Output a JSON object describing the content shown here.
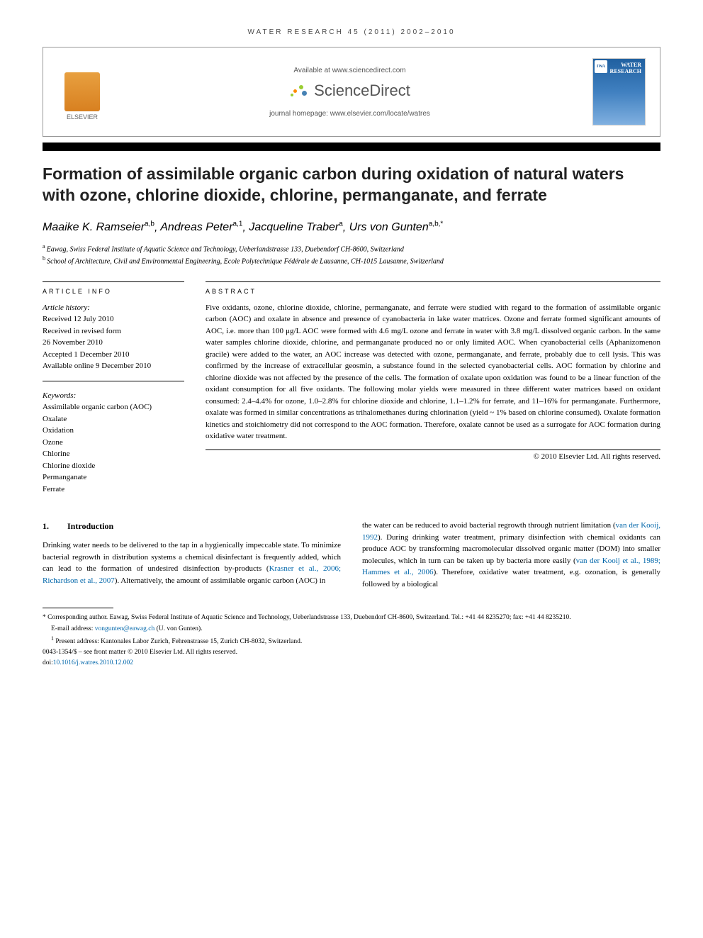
{
  "header": {
    "citation": "WATER RESEARCH 45 (2011) 2002–2010",
    "available_at": "Available at www.sciencedirect.com",
    "publisher_logo": "ScienceDirect",
    "elsevier_label": "ELSEVIER",
    "journal_homepage_label": "journal homepage: www.elsevier.com/locate/watres",
    "cover_title_line1": "WATER",
    "cover_title_line2": "RESEARCH",
    "cover_badge": "IWA"
  },
  "article": {
    "title": "Formation of assimilable organic carbon during oxidation of natural waters with ozone, chlorine dioxide, chlorine, permanganate, and ferrate",
    "authors_html_parts": [
      {
        "name": "Maaike K. Ramseier",
        "sup": "a,b"
      },
      {
        "name": "Andreas Peter",
        "sup": "a,1"
      },
      {
        "name": "Jacqueline Traber",
        "sup": "a"
      },
      {
        "name": "Urs von Gunten",
        "sup": "a,b,*"
      }
    ],
    "affiliations": [
      {
        "sup": "a",
        "text": "Eawag, Swiss Federal Institute of Aquatic Science and Technology, Ueberlandstrasse 133, Duebendorf CH-8600, Switzerland"
      },
      {
        "sup": "b",
        "text": "School of Architecture, Civil and Environmental Engineering, Ecole Polytechnique Fédérale de Lausanne, CH-1015 Lausanne, Switzerland"
      }
    ]
  },
  "info": {
    "heading": "ARTICLE INFO",
    "history_label": "Article history:",
    "received": "Received 12 July 2010",
    "revised_label": "Received in revised form",
    "revised_date": "26 November 2010",
    "accepted": "Accepted 1 December 2010",
    "online": "Available online 9 December 2010",
    "keywords_label": "Keywords:",
    "keywords": [
      "Assimilable organic carbon (AOC)",
      "Oxalate",
      "Oxidation",
      "Ozone",
      "Chlorine",
      "Chlorine dioxide",
      "Permanganate",
      "Ferrate"
    ]
  },
  "abstract": {
    "heading": "ABSTRACT",
    "text": "Five oxidants, ozone, chlorine dioxide, chlorine, permanganate, and ferrate were studied with regard to the formation of assimilable organic carbon (AOC) and oxalate in absence and presence of cyanobacteria in lake water matrices. Ozone and ferrate formed significant amounts of AOC, i.e. more than 100 μg/L AOC were formed with 4.6 mg/L ozone and ferrate in water with 3.8 mg/L dissolved organic carbon. In the same water samples chlorine dioxide, chlorine, and permanganate produced no or only limited AOC. When cyanobacterial cells (Aphanizomenon gracile) were added to the water, an AOC increase was detected with ozone, permanganate, and ferrate, probably due to cell lysis. This was confirmed by the increase of extracellular geosmin, a substance found in the selected cyanobacterial cells. AOC formation by chlorine and chlorine dioxide was not affected by the presence of the cells. The formation of oxalate upon oxidation was found to be a linear function of the oxidant consumption for all five oxidants. The following molar yields were measured in three different water matrices based on oxidant consumed: 2.4–4.4% for ozone, 1.0–2.8% for chlorine dioxide and chlorine, 1.1–1.2% for ferrate, and 11–16% for permanganate. Furthermore, oxalate was formed in similar concentrations as trihalomethanes during chlorination (yield ~ 1% based on chlorine consumed). Oxalate formation kinetics and stoichiometry did not correspond to the AOC formation. Therefore, oxalate cannot be used as a surrogate for AOC formation during oxidative water treatment.",
    "copyright": "© 2010 Elsevier Ltd. All rights reserved."
  },
  "body": {
    "section_num": "1.",
    "section_title": "Introduction",
    "col1_pre": "Drinking water needs to be delivered to the tap in a hygienically impeccable state. To minimize bacterial regrowth in distribution systems a chemical disinfectant is frequently added, which can lead to the formation of undesired disinfection by-products (",
    "col1_cite1": "Krasner et al., 2006; Richardson et al., 2007",
    "col1_post": "). Alternatively, the amount of assimilable organic carbon (AOC) in",
    "col2_pre": "the water can be reduced to avoid bacterial regrowth through nutrient limitation (",
    "col2_cite1": "van der Kooij, 1992",
    "col2_mid1": "). During drinking water treatment, primary disinfection with chemical oxidants can produce AOC by transforming macromolecular dissolved organic matter (DOM) into smaller molecules, which in turn can be taken up by bacteria more easily (",
    "col2_cite2": "van der Kooij et al., 1989; Hammes et al., 2006",
    "col2_mid2": "). Therefore, oxidative water treatment, e.g. ozonation, is generally followed by a biological"
  },
  "footnotes": {
    "corresponding": "* Corresponding author. Eawag, Swiss Federal Institute of Aquatic Science and Technology, Ueberlandstrasse 133, Duebendorf CH-8600, Switzerland. Tel.: +41 44 8235270; fax: +41 44 8235210.",
    "email_label": "E-mail address:",
    "email": "vongunten@eawag.ch",
    "email_person": "(U. von Gunten).",
    "present_addr": "Present address: Kantonales Labor Zurich, Fehrenstrasse 15, Zurich CH-8032, Switzerland.",
    "present_sup": "1",
    "issn_line": "0043-1354/$ – see front matter © 2010 Elsevier Ltd. All rights reserved.",
    "doi_label": "doi:",
    "doi": "10.1016/j.watres.2010.12.002"
  },
  "colors": {
    "link": "#0066aa",
    "elsevier_orange": "#e8a040",
    "cover_blue_top": "#2060a0",
    "cover_blue_bottom": "#80b0e0",
    "sd_green": "#9acd32",
    "sd_orange": "#ff8c00",
    "sd_blue": "#4682b4"
  }
}
